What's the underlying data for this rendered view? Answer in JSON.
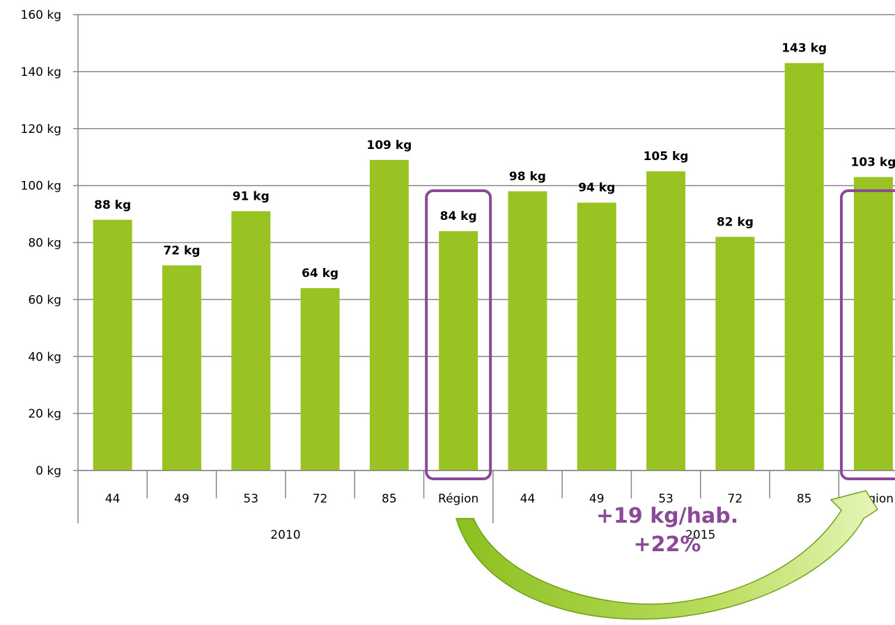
{
  "chart_data": {
    "type": "bar",
    "y_axis": {
      "min": 0,
      "max": 160,
      "step": 20,
      "unit": "kg",
      "tick_labels": [
        "0 kg",
        "20 kg",
        "40 kg",
        "60 kg",
        "80 kg",
        "100 kg",
        "120 kg",
        "140 kg",
        "160 kg"
      ]
    },
    "grid": true,
    "groups": [
      {
        "label": "2010",
        "categories": [
          "44",
          "49",
          "53",
          "72",
          "85",
          "Région"
        ],
        "values": [
          88,
          72,
          91,
          64,
          109,
          84
        ],
        "value_labels": [
          "88 kg",
          "72 kg",
          "91 kg",
          "64 kg",
          "109 kg",
          "84 kg"
        ]
      },
      {
        "label": "2015",
        "categories": [
          "44",
          "49",
          "53",
          "72",
          "85",
          "Région"
        ],
        "values": [
          98,
          94,
          105,
          82,
          143,
          103
        ],
        "value_labels": [
          "98 kg",
          "94 kg",
          "105 kg",
          "82 kg",
          "143 kg",
          "103 kg"
        ]
      }
    ],
    "highlighted_category": "Région",
    "annotation": {
      "lines": [
        "+19 kg/hab.",
        "+22%"
      ]
    }
  },
  "colors": {
    "bar": "#99c322",
    "grid": "#868686",
    "highlight": "#8b4a98",
    "annotation": "#8b4a98",
    "arrow_light": "#d8efa0",
    "arrow_dark": "#8cbf1f",
    "arrow_edge": "#6f9e18"
  }
}
